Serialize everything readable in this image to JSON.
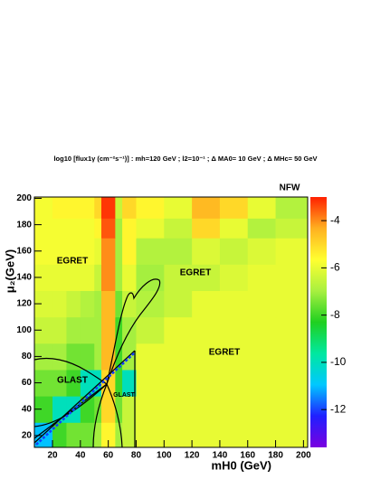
{
  "chart_data": {
    "type": "heatmap",
    "title": "log10 [flux1γ (cm⁻²s⁻¹)] : mh=120 GeV ; l2=10⁻¹ ; Δ MA0= 10 GeV ; Δ MHc= 50 GeV",
    "x_label": "mH0 (GeV)",
    "y_label": "μ₂(GeV)",
    "corner_label": "NFW",
    "region_labels": [
      "EGRET",
      "EGRET",
      "EGRET",
      "GLAST",
      "GLAST"
    ],
    "xlim": [
      7,
      203
    ],
    "ylim": [
      11,
      201
    ],
    "xticks": [
      20,
      40,
      60,
      80,
      100,
      120,
      140,
      160,
      180,
      200
    ],
    "yticks": [
      20,
      40,
      60,
      80,
      100,
      120,
      140,
      160,
      180,
      200
    ],
    "zlim": [
      -13.6,
      -3
    ],
    "zticks": [
      -12,
      -10,
      -8,
      -6,
      -4
    ],
    "colorscale": [
      "#7a00e0",
      "#2020ff",
      "#00c8ff",
      "#00e8a0",
      "#20d020",
      "#a8f040",
      "#ffff30",
      "#ffb020",
      "#ff2000"
    ],
    "x_edges": [
      7,
      20,
      30,
      40,
      50,
      55,
      65,
      70,
      80,
      100,
      120,
      140,
      160,
      180,
      203
    ],
    "y_edges": [
      11,
      30,
      50,
      70,
      90,
      110,
      130,
      150,
      170,
      185,
      201
    ],
    "z": [
      [
        -11,
        -8,
        -7.5,
        -7.5,
        -7,
        -5.5,
        -7,
        -6.5,
        -6,
        -6,
        -6,
        -6,
        -6,
        -6
      ],
      [
        -8,
        -10,
        -10,
        -8,
        -7.5,
        -5,
        -7.5,
        -6.5,
        -6,
        -6,
        -6,
        -6,
        -6,
        -6
      ],
      [
        -7.5,
        -7.5,
        -8,
        -10,
        -10,
        -5,
        -8,
        -10,
        -6,
        -6,
        -6,
        -6,
        -6,
        -6
      ],
      [
        -7,
        -7,
        -7.5,
        -7.5,
        -7,
        -4.5,
        -8,
        -7,
        -6,
        -6,
        -6,
        -6,
        -6,
        -6
      ],
      [
        -6.5,
        -6.5,
        -7,
        -7,
        -7,
        -4.5,
        -8,
        -7,
        -6.5,
        -6,
        -6,
        -6,
        -6,
        -6
      ],
      [
        -6.2,
        -6.2,
        -6.5,
        -6.8,
        -7,
        -4.5,
        -7.5,
        -6.5,
        -6.8,
        -6.5,
        -6,
        -6,
        -6,
        -6
      ],
      [
        -6,
        -6,
        -6,
        -6,
        -6.5,
        -4,
        -7,
        -6,
        -7,
        -6.5,
        -6.5,
        -6.2,
        -6,
        -6
      ],
      [
        -5.8,
        -5.8,
        -5.8,
        -5.8,
        -6,
        -4,
        -7,
        -5.5,
        -6.8,
        -6.8,
        -6.2,
        -6.5,
        -6.2,
        -6
      ],
      [
        -5.8,
        -5.8,
        -5.8,
        -5.8,
        -5.5,
        -3.5,
        -7,
        -5.5,
        -6,
        -6.5,
        -5,
        -6,
        -6.8,
        -6.5
      ],
      [
        -5.8,
        -5.5,
        -5.5,
        -5.5,
        -5,
        -3.2,
        -6.5,
        -5,
        -5.5,
        -6,
        -4.5,
        -5,
        -6,
        -6.8
      ]
    ]
  }
}
